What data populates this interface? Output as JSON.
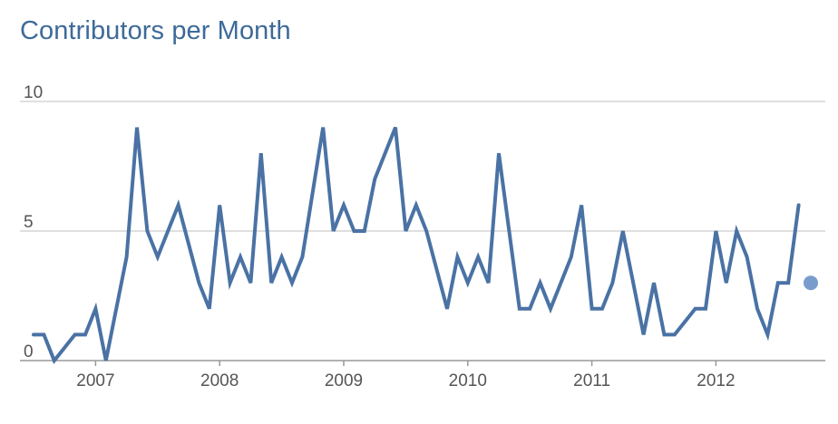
{
  "chart_data": {
    "type": "line",
    "title": "Contributors per Month",
    "xlabel": "",
    "ylabel": "",
    "ylim": [
      0,
      10
    ],
    "yticks": [
      0,
      5,
      10
    ],
    "xticks": [
      "2007",
      "2008",
      "2009",
      "2010",
      "2011",
      "2012"
    ],
    "grid": true,
    "legend": "none",
    "line_color": "#4a72a4",
    "marker_color": "#7a9ccc",
    "series": [
      {
        "x": [
          "2006-07",
          "2006-08",
          "2006-09",
          "2006-10",
          "2006-11",
          "2006-12",
          "2007-01",
          "2007-02",
          "2007-03",
          "2007-04",
          "2007-05",
          "2007-06",
          "2007-07",
          "2007-08",
          "2007-09",
          "2007-10",
          "2007-11",
          "2007-12",
          "2008-01",
          "2008-02",
          "2008-03",
          "2008-04",
          "2008-05",
          "2008-06",
          "2008-07",
          "2008-08",
          "2008-09",
          "2008-10",
          "2008-11",
          "2008-12",
          "2009-01",
          "2009-02",
          "2009-03",
          "2009-04",
          "2009-05",
          "2009-06",
          "2009-07",
          "2009-08",
          "2009-09",
          "2009-10",
          "2009-11",
          "2009-12",
          "2010-01",
          "2010-02",
          "2010-03",
          "2010-04",
          "2010-05",
          "2010-06",
          "2010-07",
          "2010-08",
          "2010-09",
          "2010-10",
          "2010-11",
          "2010-12",
          "2011-01",
          "2011-02",
          "2011-03",
          "2011-04",
          "2011-05",
          "2011-06",
          "2011-07",
          "2011-08",
          "2011-09",
          "2011-10",
          "2011-11",
          "2011-12",
          "2012-01",
          "2012-02",
          "2012-03",
          "2012-04",
          "2012-05",
          "2012-06",
          "2012-07",
          "2012-08",
          "2012-09"
        ],
        "values": [
          1,
          1,
          0,
          0.5,
          1,
          1,
          2,
          0,
          2,
          4,
          9,
          5,
          4,
          5,
          6,
          4.5,
          3,
          2,
          6,
          3,
          4,
          3,
          8,
          3,
          4,
          3,
          4,
          6.5,
          9,
          5,
          6,
          5,
          5,
          7,
          8,
          9,
          5,
          6,
          5,
          3.5,
          2,
          4,
          3,
          4,
          3,
          8,
          5,
          2,
          2,
          3,
          2,
          3,
          4,
          6,
          2,
          2,
          3,
          5,
          3,
          1,
          3,
          1,
          1,
          1.5,
          2,
          2,
          5,
          3,
          5,
          4,
          2,
          1,
          3,
          3,
          6
        ]
      }
    ],
    "partial_point": {
      "x": "2012-10",
      "value": 3
    }
  }
}
